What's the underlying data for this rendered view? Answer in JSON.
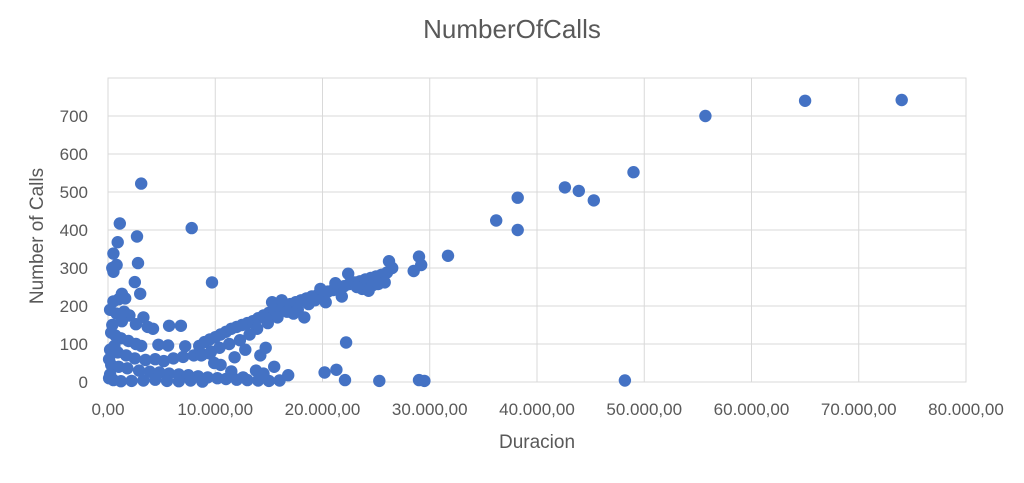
{
  "chart_data": {
    "type": "scatter",
    "title": "NumberOfCalls",
    "xlabel": "Duracion",
    "ylabel": "Number of Calls",
    "xlim": [
      0,
      80000
    ],
    "ylim": [
      0,
      800
    ],
    "xticks": [
      0,
      10000,
      20000,
      30000,
      40000,
      50000,
      60000,
      70000,
      80000
    ],
    "xtick_labels": [
      "0,00",
      "10.000,00",
      "20.000,00",
      "30.000,00",
      "40.000,00",
      "50.000,00",
      "60.000,00",
      "70.000,00",
      "80.000,00"
    ],
    "yticks": [
      0,
      100,
      200,
      300,
      400,
      500,
      600,
      700
    ],
    "ytick_labels": [
      "0",
      "100",
      "200",
      "300",
      "400",
      "500",
      "600",
      "700"
    ],
    "grid": true,
    "legend": "none",
    "marker_color": "#4472C4",
    "series": [
      {
        "points": [
          [
            74000,
            742
          ],
          [
            65000,
            740
          ],
          [
            55700,
            700
          ],
          [
            49000,
            552
          ],
          [
            42600,
            512
          ],
          [
            43900,
            503
          ],
          [
            45300,
            478
          ],
          [
            38200,
            485
          ],
          [
            36200,
            425
          ],
          [
            38200,
            400
          ],
          [
            31700,
            332
          ],
          [
            29000,
            330
          ],
          [
            29200,
            308
          ],
          [
            28500,
            292
          ],
          [
            48200,
            4
          ],
          [
            29000,
            5
          ],
          [
            29500,
            3
          ],
          [
            25300,
            3
          ],
          [
            22100,
            5
          ],
          [
            22200,
            104
          ],
          [
            21300,
            32
          ],
          [
            20200,
            25
          ],
          [
            3100,
            522
          ],
          [
            1100,
            417
          ],
          [
            2700,
            383
          ],
          [
            7800,
            405
          ],
          [
            900,
            368
          ],
          [
            500,
            338
          ],
          [
            2800,
            313
          ],
          [
            400,
            300
          ],
          [
            800,
            308
          ],
          [
            500,
            290
          ],
          [
            9700,
            262
          ],
          [
            2500,
            263
          ],
          [
            3000,
            232
          ],
          [
            1300,
            232
          ],
          [
            1000,
            218
          ],
          [
            1600,
            220
          ],
          [
            500,
            212
          ],
          [
            200,
            190
          ],
          [
            800,
            180
          ],
          [
            1500,
            185
          ],
          [
            2000,
            175
          ],
          [
            3300,
            170
          ],
          [
            2600,
            152
          ],
          [
            3700,
            145
          ],
          [
            6800,
            148
          ],
          [
            5700,
            148
          ],
          [
            4200,
            140
          ],
          [
            300,
            130
          ],
          [
            700,
            122
          ],
          [
            1200,
            115
          ],
          [
            1900,
            108
          ],
          [
            2600,
            100
          ],
          [
            3100,
            95
          ],
          [
            4700,
            98
          ],
          [
            5600,
            96
          ],
          [
            7200,
            94
          ],
          [
            200,
            85
          ],
          [
            900,
            78
          ],
          [
            1700,
            70
          ],
          [
            2500,
            62
          ],
          [
            3500,
            58
          ],
          [
            4400,
            60
          ],
          [
            5200,
            55
          ],
          [
            6100,
            62
          ],
          [
            7000,
            66
          ],
          [
            8000,
            70
          ],
          [
            8800,
            72
          ],
          [
            9500,
            75
          ],
          [
            300,
            45
          ],
          [
            1000,
            40
          ],
          [
            1800,
            36
          ],
          [
            2900,
            30
          ],
          [
            3900,
            27
          ],
          [
            4800,
            25
          ],
          [
            5700,
            22
          ],
          [
            6600,
            20
          ],
          [
            7500,
            18
          ],
          [
            8400,
            15
          ],
          [
            9300,
            12
          ],
          [
            10200,
            10
          ],
          [
            11000,
            8
          ],
          [
            12000,
            6
          ],
          [
            13000,
            5
          ],
          [
            14000,
            4
          ],
          [
            15000,
            3
          ],
          [
            16000,
            4
          ],
          [
            16800,
            18
          ],
          [
            15500,
            40
          ],
          [
            14500,
            22
          ],
          [
            13800,
            30
          ],
          [
            12600,
            12
          ],
          [
            11500,
            28
          ],
          [
            10500,
            45
          ],
          [
            9900,
            50
          ],
          [
            200,
            20
          ],
          [
            100,
            10
          ],
          [
            500,
            5
          ],
          [
            1200,
            2
          ],
          [
            2200,
            3
          ],
          [
            3300,
            4
          ],
          [
            4400,
            6
          ],
          [
            5500,
            3
          ],
          [
            6600,
            2
          ],
          [
            7700,
            4
          ],
          [
            8800,
            1
          ],
          [
            100,
            60
          ],
          [
            600,
            95
          ],
          [
            400,
            150
          ],
          [
            1300,
            160
          ],
          [
            8500,
            95
          ],
          [
            9000,
            105
          ],
          [
            9500,
            112
          ],
          [
            10000,
            118
          ],
          [
            10500,
            125
          ],
          [
            11000,
            132
          ],
          [
            11500,
            140
          ],
          [
            12000,
            145
          ],
          [
            12500,
            150
          ],
          [
            13000,
            155
          ],
          [
            13500,
            160
          ],
          [
            14000,
            168
          ],
          [
            14500,
            175
          ],
          [
            15000,
            182
          ],
          [
            15500,
            190
          ],
          [
            16000,
            196
          ],
          [
            16500,
            200
          ],
          [
            17000,
            205
          ],
          [
            17500,
            210
          ],
          [
            18000,
            215
          ],
          [
            18500,
            220
          ],
          [
            19000,
            225
          ],
          [
            19500,
            228
          ],
          [
            20000,
            232
          ],
          [
            20500,
            238
          ],
          [
            21000,
            242
          ],
          [
            21500,
            248
          ],
          [
            22000,
            252
          ],
          [
            22500,
            258
          ],
          [
            23000,
            262
          ],
          [
            23500,
            265
          ],
          [
            24000,
            270
          ],
          [
            24500,
            274
          ],
          [
            25000,
            278
          ],
          [
            25500,
            282
          ],
          [
            26000,
            288
          ],
          [
            26500,
            300
          ],
          [
            26200,
            318
          ],
          [
            25800,
            262
          ],
          [
            24700,
            255
          ],
          [
            23700,
            245
          ],
          [
            22400,
            285
          ],
          [
            21200,
            260
          ],
          [
            19800,
            245
          ],
          [
            18700,
            205
          ],
          [
            17700,
            190
          ],
          [
            16700,
            185
          ],
          [
            15800,
            170
          ],
          [
            14900,
            155
          ],
          [
            13900,
            140
          ],
          [
            13200,
            125
          ],
          [
            12300,
            110
          ],
          [
            11300,
            100
          ],
          [
            10400,
            90
          ],
          [
            9600,
            80
          ],
          [
            8700,
            70
          ],
          [
            14200,
            70
          ],
          [
            14700,
            90
          ],
          [
            12800,
            85
          ],
          [
            11800,
            65
          ],
          [
            15300,
            210
          ],
          [
            16200,
            215
          ],
          [
            17300,
            180
          ],
          [
            18300,
            170
          ],
          [
            19300,
            215
          ],
          [
            20300,
            210
          ],
          [
            21800,
            225
          ],
          [
            23200,
            250
          ],
          [
            24300,
            240
          ],
          [
            25200,
            258
          ]
        ]
      }
    ]
  }
}
